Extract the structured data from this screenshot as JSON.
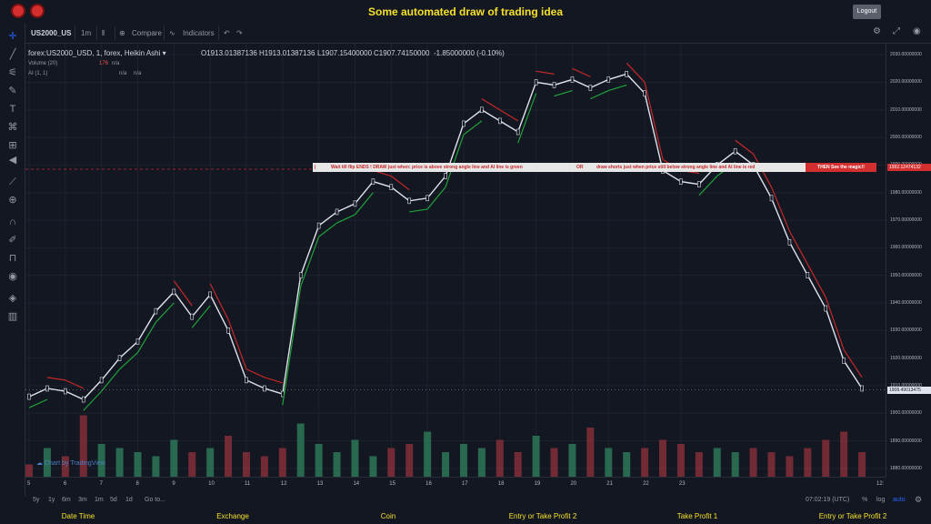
{
  "app": {
    "title": "Some automated draw of trading idea",
    "logout_label": "Logout",
    "logo_icons": [
      "horned-logo-icon",
      "horned-logo-icon"
    ]
  },
  "toolbar": {
    "symbol": "US2000_US",
    "interval": "1m",
    "compare_label": "Compare",
    "indicators_label": "Indicators"
  },
  "legend": {
    "main": "forex:US2000_USD, 1, forex, Heikin Ashi",
    "open": "O1913.01387136",
    "high": "H1913.01387136",
    "low": "L1907.15400000",
    "close": "C1907.74150000",
    "change": "-1.85000000 (-0.10%)",
    "volume_label": "Volume (20)",
    "volume_value": "176",
    "volume_na": "n/a",
    "ai_label": "AI (1, 1)",
    "ai_na1": "n/a",
    "ai_na2": "n/a"
  },
  "banner": {
    "pipe": "|",
    "part1": "Wait till flip ENDS  !    DRAW just when:  price is above strong angle line and AI line is green",
    "or": "OR",
    "part2": "draw shorts just when price still below strong angle line and AI line is red",
    "magic": "THEN See the magic!!"
  },
  "price_axis": {
    "labels": [
      "2030.00000000",
      "2020.00000000",
      "2010.00000000",
      "2000.00000000",
      "1990.00000000",
      "1980.00000000",
      "1970.00000000",
      "1960.00000000",
      "1950.00000000",
      "1940.00000000",
      "1930.00000000",
      "1920.00000000",
      "1910.00000000",
      "1900.00000000",
      "1890.00000000",
      "1880.00000000"
    ],
    "line_badge": "1992.12474132",
    "last_price_badge": "1908.49013475"
  },
  "time_axis": {
    "labels": [
      "5",
      "6",
      "7",
      "8",
      "9",
      "10",
      "11",
      "12",
      "13",
      "14",
      "15",
      "16",
      "17",
      "18",
      "19",
      "20",
      "21",
      "22",
      "23",
      "12:"
    ]
  },
  "bottombar": {
    "ranges": [
      "5y",
      "1y",
      "6m",
      "3m",
      "1m",
      "5d",
      "1d"
    ],
    "goto_label": "Go to...",
    "clock": "07:02:19 (UTC)",
    "percent_label": "%",
    "log_label": "log",
    "auto_label": "auto"
  },
  "watermark": "Chart by TradingView",
  "footer": {
    "columns": [
      "Date Time",
      "Exchange",
      "Coin",
      "Entry or Take Profit 2",
      "Take Profit 1",
      "Entry or Take Profit 2"
    ]
  },
  "colors": {
    "background": "#131722",
    "accent_yellow": "#f5e12a",
    "up_volume": "#2e7d5b",
    "down_volume": "#8b2f3a",
    "ai_green": "#1fa33a",
    "ai_red": "#c62828"
  },
  "chart_data": {
    "type": "line",
    "xlabel": "",
    "ylabel": "",
    "ylim": [
      1877,
      2034
    ],
    "x_ticks": [
      "5",
      "6",
      "7",
      "8",
      "9",
      "10",
      "11",
      "12",
      "13",
      "14",
      "15",
      "16",
      "17",
      "18",
      "19",
      "20",
      "21",
      "22",
      "23"
    ],
    "series": [
      {
        "x": [
          0,
          0.5,
          1,
          1.5,
          2,
          2.5,
          3,
          3.5,
          4,
          4.5,
          5,
          5.5,
          6,
          6.5,
          7,
          7.5,
          8,
          8.5,
          9,
          9.5,
          10,
          10.5,
          11,
          11.5,
          12,
          12.5,
          13,
          13.5,
          14,
          14.5,
          15,
          15.5,
          16,
          16.5,
          17,
          17.5,
          18,
          18.5,
          19,
          19.5,
          20,
          20.5,
          21,
          21.5,
          22,
          22.5,
          23
        ],
        "values": [
          1906,
          1909,
          1908,
          1905,
          1912,
          1920,
          1926,
          1937,
          1944,
          1935,
          1943,
          1930,
          1912,
          1909,
          1907,
          1950,
          1968,
          1973,
          1976,
          1984,
          1982,
          1977,
          1978,
          1986,
          2005,
          2010,
          2006,
          2002,
          2020,
          2019,
          2021,
          2018,
          2021,
          2023,
          2016,
          1988,
          1984,
          1983,
          1990,
          1995,
          1990,
          1978,
          1962,
          1950,
          1938,
          1919,
          1909
        ]
      }
    ],
    "volume": {
      "values": [
        6,
        14,
        10,
        30,
        16,
        14,
        12,
        10,
        18,
        12,
        14,
        20,
        12,
        10,
        14,
        26,
        16,
        12,
        18,
        10,
        14,
        16,
        22,
        12,
        16,
        14,
        18,
        12,
        20,
        14,
        16,
        24,
        14,
        12,
        14,
        18,
        16,
        12,
        14,
        12,
        14,
        12,
        10,
        14,
        18,
        22,
        12
      ]
    }
  }
}
